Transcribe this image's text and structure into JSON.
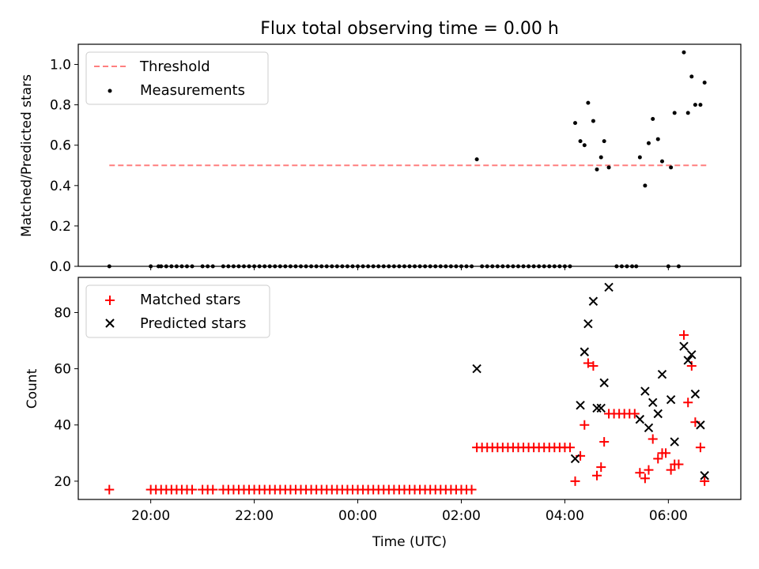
{
  "chart_data": [
    {
      "type": "scatter",
      "title": "Flux total observing time = 0.00 h",
      "ylabel": "Matched/Predicted stars",
      "xlabel": "",
      "x_unit": "hours after 20:00 UTC",
      "xlim": [
        -1.4,
        11.4
      ],
      "ylim": [
        0.0,
        1.1
      ],
      "yticks": [
        "0.0",
        "0.2",
        "0.4",
        "0.6",
        "0.8",
        "1.0"
      ],
      "grid": false,
      "legend": {
        "position": "top-left",
        "entries": [
          "Threshold",
          "Measurements"
        ]
      },
      "threshold": {
        "name": "Threshold",
        "value": 0.5,
        "x": [
          -0.8,
          10.75
        ],
        "color": "#ff7f7f"
      },
      "series": [
        {
          "name": "Measurements",
          "color": "#000000",
          "points": [
            [
              -0.8,
              0.0
            ],
            [
              0.0,
              0.0
            ],
            [
              0.15,
              0.0
            ],
            [
              0.2,
              0.0
            ],
            [
              0.3,
              0.0
            ],
            [
              0.4,
              0.0
            ],
            [
              0.5,
              0.0
            ],
            [
              0.6,
              0.0
            ],
            [
              0.7,
              0.0
            ],
            [
              0.8,
              0.0
            ],
            [
              1.0,
              0.0
            ],
            [
              1.1,
              0.0
            ],
            [
              1.2,
              0.0
            ],
            [
              1.4,
              0.0
            ],
            [
              1.5,
              0.0
            ],
            [
              1.6,
              0.0
            ],
            [
              1.7,
              0.0
            ],
            [
              1.8,
              0.0
            ],
            [
              1.9,
              0.0
            ],
            [
              2.0,
              0.0
            ],
            [
              2.1,
              0.0
            ],
            [
              2.2,
              0.0
            ],
            [
              2.3,
              0.0
            ],
            [
              2.4,
              0.0
            ],
            [
              2.5,
              0.0
            ],
            [
              2.6,
              0.0
            ],
            [
              2.7,
              0.0
            ],
            [
              2.8,
              0.0
            ],
            [
              2.9,
              0.0
            ],
            [
              3.0,
              0.0
            ],
            [
              3.1,
              0.0
            ],
            [
              3.2,
              0.0
            ],
            [
              3.3,
              0.0
            ],
            [
              3.4,
              0.0
            ],
            [
              3.5,
              0.0
            ],
            [
              3.6,
              0.0
            ],
            [
              3.7,
              0.0
            ],
            [
              3.8,
              0.0
            ],
            [
              3.9,
              0.0
            ],
            [
              4.0,
              0.0
            ],
            [
              4.1,
              0.0
            ],
            [
              4.2,
              0.0
            ],
            [
              4.3,
              0.0
            ],
            [
              4.4,
              0.0
            ],
            [
              4.5,
              0.0
            ],
            [
              4.6,
              0.0
            ],
            [
              4.7,
              0.0
            ],
            [
              4.8,
              0.0
            ],
            [
              4.9,
              0.0
            ],
            [
              5.0,
              0.0
            ],
            [
              5.1,
              0.0
            ],
            [
              5.2,
              0.0
            ],
            [
              5.3,
              0.0
            ],
            [
              5.4,
              0.0
            ],
            [
              5.5,
              0.0
            ],
            [
              5.6,
              0.0
            ],
            [
              5.7,
              0.0
            ],
            [
              5.8,
              0.0
            ],
            [
              5.9,
              0.0
            ],
            [
              6.0,
              0.0
            ],
            [
              6.1,
              0.0
            ],
            [
              6.2,
              0.0
            ],
            [
              6.3,
              0.53
            ],
            [
              6.4,
              0.0
            ],
            [
              6.5,
              0.0
            ],
            [
              6.6,
              0.0
            ],
            [
              6.7,
              0.0
            ],
            [
              6.8,
              0.0
            ],
            [
              6.9,
              0.0
            ],
            [
              7.0,
              0.0
            ],
            [
              7.1,
              0.0
            ],
            [
              7.2,
              0.0
            ],
            [
              7.3,
              0.0
            ],
            [
              7.4,
              0.0
            ],
            [
              7.5,
              0.0
            ],
            [
              7.6,
              0.0
            ],
            [
              7.7,
              0.0
            ],
            [
              7.8,
              0.0
            ],
            [
              7.9,
              0.0
            ],
            [
              8.0,
              0.0
            ],
            [
              8.1,
              0.0
            ],
            [
              8.2,
              0.71
            ],
            [
              8.3,
              0.62
            ],
            [
              8.38,
              0.6
            ],
            [
              8.45,
              0.81
            ],
            [
              8.55,
              0.72
            ],
            [
              8.62,
              0.48
            ],
            [
              8.7,
              0.54
            ],
            [
              8.76,
              0.62
            ],
            [
              8.85,
              0.49
            ],
            [
              9.0,
              0.0
            ],
            [
              9.1,
              0.0
            ],
            [
              9.2,
              0.0
            ],
            [
              9.3,
              0.0
            ],
            [
              9.38,
              0.0
            ],
            [
              9.45,
              0.54
            ],
            [
              9.55,
              0.4
            ],
            [
              9.62,
              0.61
            ],
            [
              9.7,
              0.73
            ],
            [
              9.8,
              0.63
            ],
            [
              9.88,
              0.52
            ],
            [
              10.0,
              0.0
            ],
            [
              10.05,
              0.49
            ],
            [
              10.12,
              0.76
            ],
            [
              10.2,
              0.0
            ],
            [
              10.3,
              1.06
            ],
            [
              10.38,
              0.76
            ],
            [
              10.45,
              0.94
            ],
            [
              10.52,
              0.8
            ],
            [
              10.62,
              0.8
            ],
            [
              10.7,
              0.91
            ]
          ]
        }
      ]
    },
    {
      "type": "scatter",
      "title": "",
      "ylabel": "Count",
      "xlabel": "Time (UTC)",
      "x_unit": "hours after 20:00 UTC",
      "xlim": [
        -1.4,
        11.4
      ],
      "ylim": [
        13.5,
        92.5
      ],
      "yticks": [
        "20",
        "40",
        "60",
        "80"
      ],
      "xticks": [
        "20:00",
        "22:00",
        "00:00",
        "02:00",
        "04:00",
        "06:00"
      ],
      "grid": false,
      "legend": {
        "position": "top-left",
        "entries": [
          "Matched stars",
          "Predicted stars"
        ]
      },
      "series": [
        {
          "name": "Matched stars",
          "marker": "plus",
          "color": "#ff0000",
          "points": [
            [
              -0.8,
              17
            ],
            [
              0.0,
              17
            ],
            [
              0.1,
              17
            ],
            [
              0.2,
              17
            ],
            [
              0.3,
              17
            ],
            [
              0.4,
              17
            ],
            [
              0.5,
              17
            ],
            [
              0.6,
              17
            ],
            [
              0.7,
              17
            ],
            [
              0.8,
              17
            ],
            [
              1.0,
              17
            ],
            [
              1.1,
              17
            ],
            [
              1.2,
              17
            ],
            [
              1.4,
              17
            ],
            [
              1.5,
              17
            ],
            [
              1.6,
              17
            ],
            [
              1.7,
              17
            ],
            [
              1.8,
              17
            ],
            [
              1.9,
              17
            ],
            [
              2.0,
              17
            ],
            [
              2.1,
              17
            ],
            [
              2.2,
              17
            ],
            [
              2.3,
              17
            ],
            [
              2.4,
              17
            ],
            [
              2.5,
              17
            ],
            [
              2.6,
              17
            ],
            [
              2.7,
              17
            ],
            [
              2.8,
              17
            ],
            [
              2.9,
              17
            ],
            [
              3.0,
              17
            ],
            [
              3.1,
              17
            ],
            [
              3.2,
              17
            ],
            [
              3.3,
              17
            ],
            [
              3.4,
              17
            ],
            [
              3.5,
              17
            ],
            [
              3.6,
              17
            ],
            [
              3.7,
              17
            ],
            [
              3.8,
              17
            ],
            [
              3.9,
              17
            ],
            [
              4.0,
              17
            ],
            [
              4.1,
              17
            ],
            [
              4.2,
              17
            ],
            [
              4.3,
              17
            ],
            [
              4.4,
              17
            ],
            [
              4.5,
              17
            ],
            [
              4.6,
              17
            ],
            [
              4.7,
              17
            ],
            [
              4.8,
              17
            ],
            [
              4.9,
              17
            ],
            [
              5.0,
              17
            ],
            [
              5.1,
              17
            ],
            [
              5.2,
              17
            ],
            [
              5.3,
              17
            ],
            [
              5.4,
              17
            ],
            [
              5.5,
              17
            ],
            [
              5.6,
              17
            ],
            [
              5.7,
              17
            ],
            [
              5.8,
              17
            ],
            [
              5.9,
              17
            ],
            [
              6.0,
              17
            ],
            [
              6.1,
              17
            ],
            [
              6.2,
              17
            ],
            [
              6.3,
              32
            ],
            [
              6.4,
              32
            ],
            [
              6.5,
              32
            ],
            [
              6.6,
              32
            ],
            [
              6.7,
              32
            ],
            [
              6.8,
              32
            ],
            [
              6.9,
              32
            ],
            [
              7.0,
              32
            ],
            [
              7.1,
              32
            ],
            [
              7.2,
              32
            ],
            [
              7.3,
              32
            ],
            [
              7.4,
              32
            ],
            [
              7.5,
              32
            ],
            [
              7.6,
              32
            ],
            [
              7.7,
              32
            ],
            [
              7.8,
              32
            ],
            [
              7.9,
              32
            ],
            [
              8.0,
              32
            ],
            [
              8.1,
              32
            ],
            [
              8.2,
              20
            ],
            [
              8.3,
              29
            ],
            [
              8.38,
              40
            ],
            [
              8.45,
              62
            ],
            [
              8.55,
              61
            ],
            [
              8.62,
              22
            ],
            [
              8.7,
              25
            ],
            [
              8.76,
              34
            ],
            [
              8.85,
              44
            ],
            [
              8.95,
              44
            ],
            [
              9.05,
              44
            ],
            [
              9.15,
              44
            ],
            [
              9.25,
              44
            ],
            [
              9.35,
              44
            ],
            [
              9.45,
              23
            ],
            [
              9.55,
              21
            ],
            [
              9.62,
              24
            ],
            [
              9.7,
              35
            ],
            [
              9.8,
              28
            ],
            [
              9.88,
              30
            ],
            [
              9.95,
              30
            ],
            [
              10.05,
              24
            ],
            [
              10.12,
              26
            ],
            [
              10.2,
              26
            ],
            [
              10.3,
              72
            ],
            [
              10.38,
              48
            ],
            [
              10.45,
              61
            ],
            [
              10.52,
              41
            ],
            [
              10.62,
              32
            ],
            [
              10.7,
              20
            ]
          ]
        },
        {
          "name": "Predicted stars",
          "marker": "x",
          "color": "#000000",
          "points": [
            [
              6.3,
              60
            ],
            [
              8.2,
              28
            ],
            [
              8.3,
              47
            ],
            [
              8.38,
              66
            ],
            [
              8.45,
              76
            ],
            [
              8.55,
              84
            ],
            [
              8.62,
              46
            ],
            [
              8.7,
              46
            ],
            [
              8.76,
              55
            ],
            [
              8.85,
              89
            ],
            [
              9.45,
              42
            ],
            [
              9.55,
              52
            ],
            [
              9.62,
              39
            ],
            [
              9.7,
              48
            ],
            [
              9.8,
              44
            ],
            [
              9.88,
              58
            ],
            [
              10.05,
              49
            ],
            [
              10.12,
              34
            ],
            [
              10.3,
              68
            ],
            [
              10.38,
              63
            ],
            [
              10.45,
              65
            ],
            [
              10.52,
              51
            ],
            [
              10.62,
              40
            ],
            [
              10.7,
              22
            ]
          ]
        }
      ]
    }
  ]
}
